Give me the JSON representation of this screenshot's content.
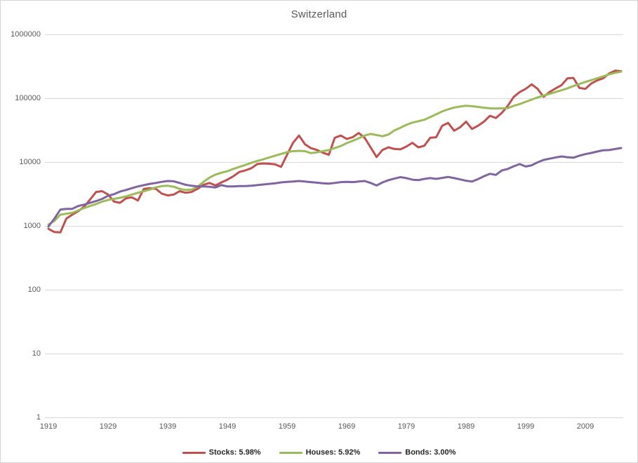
{
  "chart_data": {
    "type": "line",
    "title": "Switzerland",
    "y_scale": "log",
    "ylim": [
      1,
      1000000
    ],
    "y_ticks": [
      1,
      10,
      100,
      1000,
      10000,
      100000,
      1000000
    ],
    "y_tick_labels": [
      "1",
      "10",
      "100",
      "1000",
      "10000",
      "100000",
      "1000000"
    ],
    "x_ticks": [
      1919,
      1929,
      1939,
      1949,
      1959,
      1969,
      1979,
      1989,
      1999,
      2009
    ],
    "grid": "horizontal",
    "gridline_color": "#d9d9d9",
    "axis_label_color": "#595959",
    "legend_position": "bottom",
    "x_years": [
      1919,
      1920,
      1921,
      1922,
      1923,
      1924,
      1925,
      1926,
      1927,
      1928,
      1929,
      1930,
      1931,
      1932,
      1933,
      1934,
      1935,
      1936,
      1937,
      1938,
      1939,
      1940,
      1941,
      1942,
      1943,
      1944,
      1945,
      1946,
      1947,
      1948,
      1949,
      1950,
      1951,
      1952,
      1953,
      1954,
      1955,
      1956,
      1957,
      1958,
      1959,
      1960,
      1961,
      1962,
      1963,
      1964,
      1965,
      1966,
      1967,
      1968,
      1969,
      1970,
      1971,
      1972,
      1973,
      1974,
      1975,
      1976,
      1977,
      1978,
      1979,
      1980,
      1981,
      1982,
      1983,
      1984,
      1985,
      1986,
      1987,
      1988,
      1989,
      1990,
      1991,
      1992,
      1993,
      1994,
      1995,
      1996,
      1997,
      1998,
      1999,
      2000,
      2001,
      2002,
      2003,
      2004,
      2005,
      2006,
      2007,
      2008,
      2009,
      2010,
      2011,
      2012,
      2013,
      2014,
      2015
    ],
    "series": [
      {
        "name": "Stocks: 5.98%",
        "color": "#c0504d",
        "values": [
          900,
          800,
          790,
          1300,
          1500,
          1700,
          2000,
          2600,
          3400,
          3500,
          3100,
          2400,
          2300,
          2700,
          2800,
          2500,
          3800,
          3900,
          3800,
          3200,
          3000,
          3100,
          3500,
          3300,
          3400,
          3800,
          4400,
          4700,
          4300,
          4800,
          5300,
          6000,
          7000,
          7400,
          8000,
          9300,
          9500,
          9400,
          9200,
          8400,
          13000,
          20000,
          26000,
          19000,
          16500,
          15500,
          14000,
          13000,
          24000,
          26000,
          23000,
          24500,
          28500,
          24000,
          17000,
          12000,
          15500,
          17000,
          16000,
          15800,
          17500,
          20000,
          17000,
          18000,
          24000,
          24500,
          37000,
          41000,
          31000,
          35000,
          43000,
          33000,
          37000,
          43000,
          53000,
          49000,
          59000,
          76000,
          105000,
          125000,
          140000,
          165000,
          140000,
          105000,
          125000,
          142000,
          160000,
          205000,
          208000,
          145000,
          140000,
          170000,
          190000,
          205000,
          245000,
          270000,
          265000
        ]
      },
      {
        "name": "Houses: 5.92%",
        "color": "#9bbb59",
        "values": [
          1050,
          1200,
          1500,
          1550,
          1600,
          1750,
          1900,
          2050,
          2200,
          2400,
          2550,
          2650,
          2750,
          2900,
          3100,
          3300,
          3500,
          3700,
          4000,
          4200,
          4250,
          4100,
          3800,
          3650,
          3700,
          4100,
          4900,
          5700,
          6350,
          6800,
          7200,
          7800,
          8400,
          9000,
          9700,
          10400,
          11000,
          11800,
          12600,
          13400,
          14300,
          14800,
          15000,
          14800,
          13800,
          14200,
          14800,
          15400,
          16600,
          17800,
          19800,
          21500,
          23600,
          26000,
          27600,
          26500,
          25400,
          27000,
          31300,
          34500,
          38300,
          41500,
          43600,
          46000,
          50600,
          56000,
          62000,
          67000,
          71400,
          74000,
          76000,
          75000,
          73000,
          71000,
          69500,
          69000,
          69500,
          70000,
          76000,
          81000,
          88000,
          95000,
          103000,
          110000,
          117000,
          125000,
          133000,
          143000,
          155000,
          167000,
          180000,
          192000,
          205000,
          220000,
          237000,
          250000,
          260000
        ]
      },
      {
        "name": "Bonds: 3.00%",
        "color": "#8064a2",
        "values": [
          975,
          1300,
          1800,
          1850,
          1850,
          2050,
          2150,
          2300,
          2450,
          2650,
          2950,
          3150,
          3450,
          3650,
          3900,
          4150,
          4350,
          4550,
          4700,
          4900,
          5050,
          5000,
          4700,
          4400,
          4250,
          4150,
          4150,
          4100,
          4000,
          4350,
          4150,
          4150,
          4200,
          4200,
          4250,
          4350,
          4450,
          4550,
          4650,
          4800,
          4900,
          4950,
          5050,
          4950,
          4850,
          4750,
          4650,
          4600,
          4700,
          4850,
          4900,
          4850,
          4950,
          5050,
          4700,
          4300,
          4800,
          5200,
          5500,
          5800,
          5600,
          5300,
          5200,
          5450,
          5600,
          5450,
          5650,
          5850,
          5600,
          5350,
          5100,
          4950,
          5400,
          6000,
          6550,
          6300,
          7400,
          7800,
          8600,
          9300,
          8500,
          8900,
          9900,
          10800,
          11300,
          11800,
          12250,
          11900,
          11700,
          12600,
          13300,
          13900,
          14600,
          15300,
          15400,
          16000,
          16600
        ]
      }
    ]
  }
}
